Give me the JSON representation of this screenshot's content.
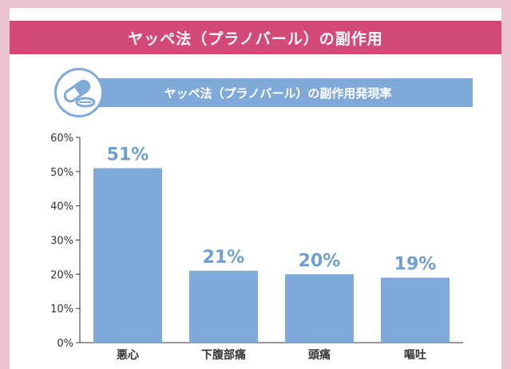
{
  "header": {
    "title": "ヤッペ法（プラノバール）の副作用"
  },
  "panel": {
    "subtitle": "ヤッペ法（プラノバール）の副作用発現率",
    "icon": "pill-capsule-icon"
  },
  "colors": {
    "banner": "#d44a77",
    "bar": "#7fa9d8",
    "value_text": "#6f9ed3",
    "frame": "#ecc3cf"
  },
  "chart_data": {
    "type": "bar",
    "title": "ヤッペ法（プラノバール）の副作用発現率",
    "categories": [
      "悪心",
      "下腹部痛",
      "頭痛",
      "嘔吐"
    ],
    "values": [
      51,
      21,
      20,
      19
    ],
    "value_labels": [
      "51%",
      "21%",
      "20%",
      "19%"
    ],
    "ylim": [
      0,
      60
    ],
    "yticks": [
      0,
      10,
      20,
      30,
      40,
      50,
      60
    ],
    "ytick_labels": [
      "0%",
      "10%",
      "20%",
      "30%",
      "40%",
      "50%",
      "60%"
    ],
    "xlabel": "",
    "ylabel": "",
    "grid": false,
    "legend": "none"
  }
}
